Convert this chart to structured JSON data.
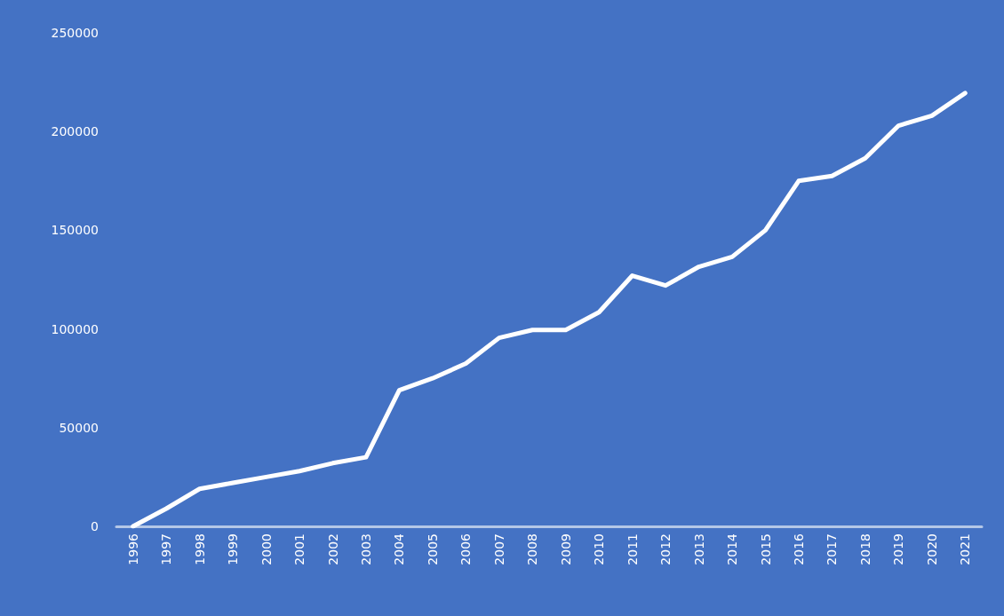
{
  "chart_data": {
    "type": "line",
    "categories": [
      "1996",
      "1997",
      "1998",
      "1999",
      "2000",
      "2001",
      "2002",
      "2003",
      "2004",
      "2005",
      "2006",
      "2007",
      "2008",
      "2009",
      "2010",
      "2011",
      "2012",
      "2013",
      "2014",
      "2015",
      "2016",
      "2017",
      "2018",
      "2019",
      "2020",
      "2021"
    ],
    "series": [
      {
        "color": "#ffffff",
        "values": [
          0,
          9000,
          19000,
          22000,
          25000,
          28000,
          32000,
          35000,
          69000,
          75000,
          82500,
          95500,
          99500,
          99500,
          108500,
          127000,
          122000,
          131500,
          136500,
          150000,
          175000,
          177500,
          186500,
          203000,
          208000,
          219500
        ]
      }
    ],
    "ylim": [
      0,
      250000
    ],
    "yticks": [
      0,
      50000,
      100000,
      150000,
      200000,
      250000
    ],
    "grid": false,
    "marker": "none",
    "line_style": "solid"
  }
}
